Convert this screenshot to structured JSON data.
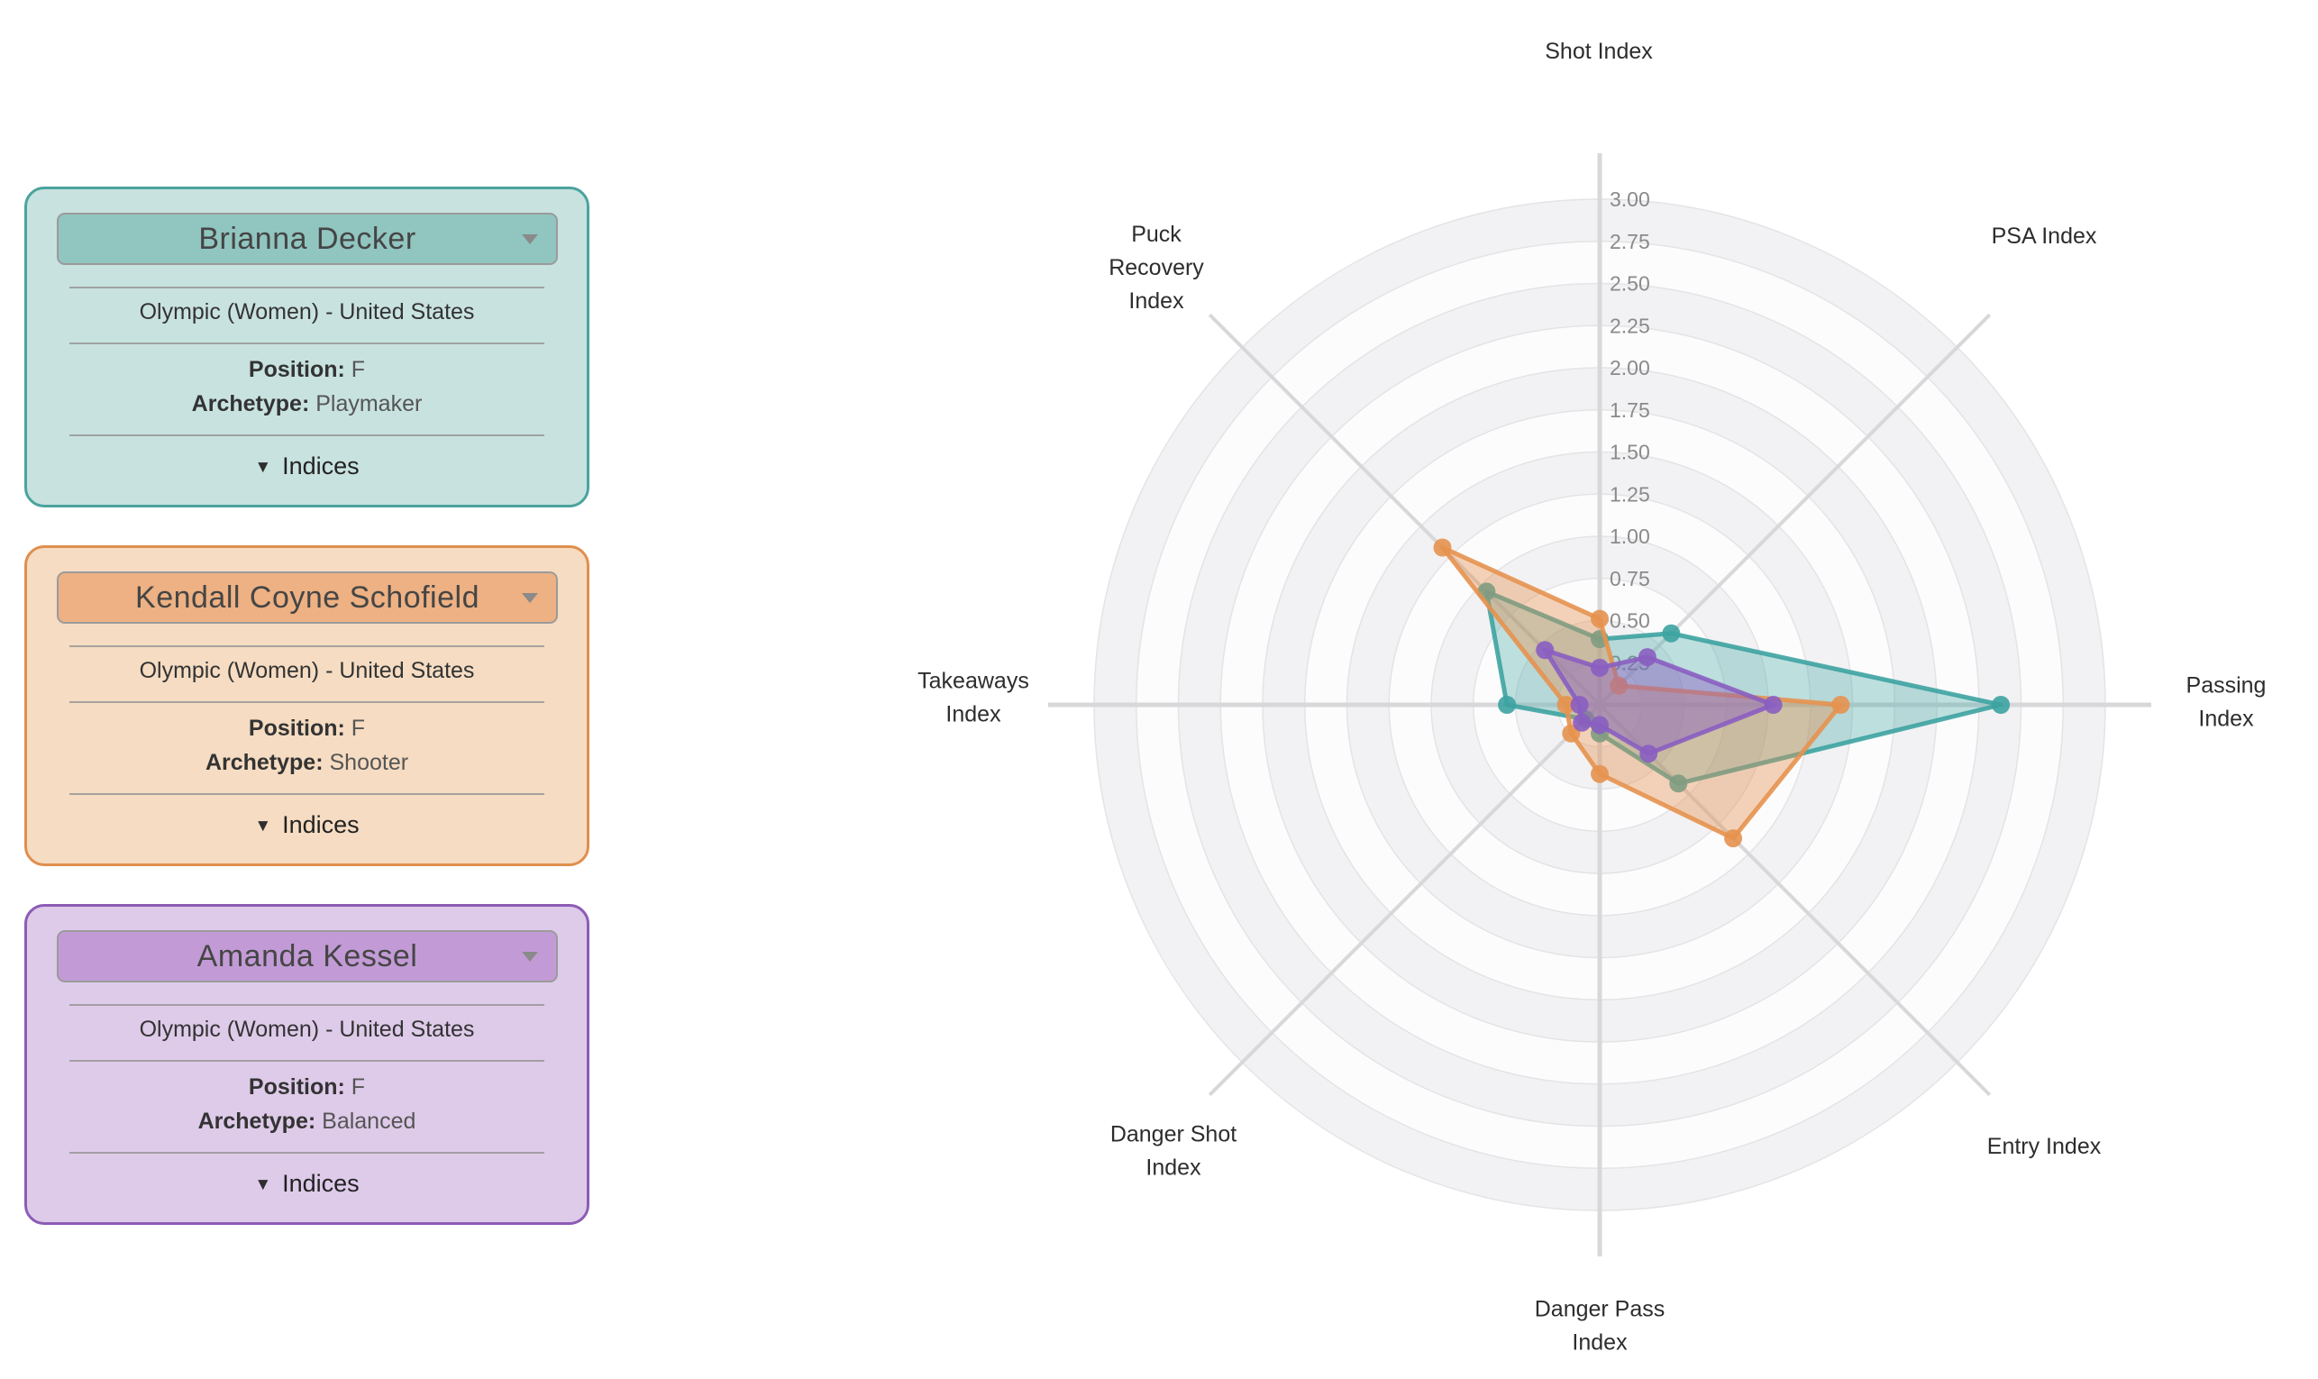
{
  "page": {
    "background": "#ffffff"
  },
  "players": [
    {
      "name": "Brianna Decker",
      "league_team": "Olympic (Women) - United States",
      "position_label": "Position:",
      "position": "F",
      "archetype_label": "Archetype:",
      "archetype": "Playmaker",
      "indices_label": "Indices",
      "color": "#3da3a1",
      "card_bg": "#c8e2df",
      "card_border": "#4ba39d",
      "select_bg": "#91c5c0"
    },
    {
      "name": "Kendall Coyne Schofield",
      "league_team": "Olympic (Women) - United States",
      "position_label": "Position:",
      "position": "F",
      "archetype_label": "Archetype:",
      "archetype": "Shooter",
      "indices_label": "Indices",
      "color": "#e6924f",
      "card_bg": "#f5dcc2",
      "card_border": "#df8f4e",
      "select_bg": "#edb183"
    },
    {
      "name": "Amanda Kessel",
      "league_team": "Olympic (Women) - United States",
      "position_label": "Position:",
      "position": "F",
      "archetype_label": "Archetype:",
      "archetype": "Balanced",
      "indices_label": "Indices",
      "color": "#8a5ec1",
      "card_bg": "#decae9",
      "card_border": "#8d5cb5",
      "select_bg": "#c29bd6"
    }
  ],
  "chart_data": {
    "type": "radar",
    "axes": [
      "Shot Index",
      "PSA Index",
      "Passing Index",
      "Entry Index",
      "Danger Pass Index",
      "Danger Shot Index",
      "Takeaways Index",
      "Puck Recovery Index"
    ],
    "angles_deg": [
      90,
      45,
      0,
      -45,
      -90,
      -135,
      180,
      135
    ],
    "series": [
      {
        "name": "Brianna Decker",
        "color": "#3da3a1",
        "fill_opacity": 0.33,
        "values": [
          0.39,
          0.6,
          2.38,
          0.66,
          0.17,
          0.12,
          0.55,
          0.95
        ]
      },
      {
        "name": "Kendall Coyne Schofield",
        "color": "#e6924f",
        "fill_opacity": 0.4,
        "values": [
          0.51,
          0.16,
          1.43,
          1.12,
          0.41,
          0.24,
          0.2,
          1.32
        ]
      },
      {
        "name": "Amanda Kessel",
        "color": "#8a5ec1",
        "fill_opacity": 0.45,
        "values": [
          0.22,
          0.4,
          1.03,
          0.41,
          0.12,
          0.15,
          0.12,
          0.46
        ]
      }
    ],
    "radial_ticks": [
      "0.25",
      "0.50",
      "0.75",
      "1.00",
      "1.25",
      "1.50",
      "1.75",
      "2.00",
      "2.25",
      "2.50",
      "2.75",
      "3.00"
    ],
    "rlim": [
      0,
      3.0
    ],
    "grid": {
      "ring_step": 0.25,
      "band_color_even": "#f2f2f4",
      "band_color_odd": "#fcfcfd",
      "ring_line": "#e4e4e6",
      "spoke_line": "#d8d8da",
      "tick_color": "#8a8a8a",
      "label_color": "#2d2d2d"
    },
    "legend": "none"
  }
}
